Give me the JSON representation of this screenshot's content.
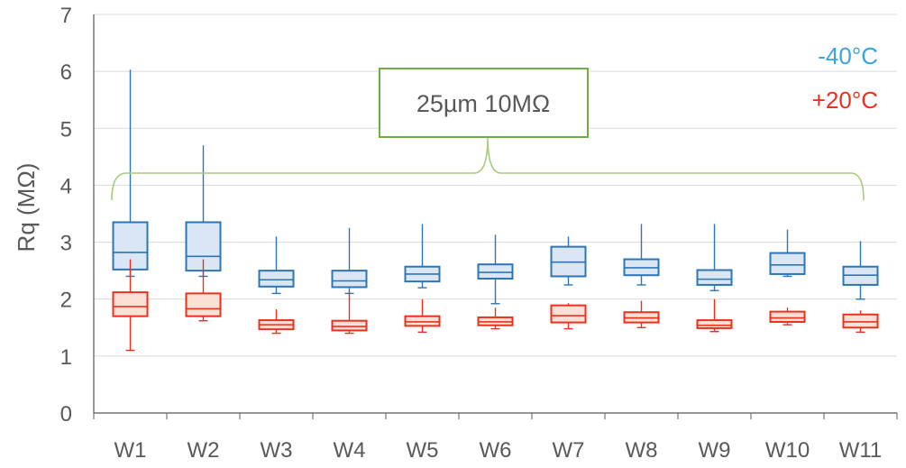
{
  "chart_data": {
    "type": "box",
    "xlabel": "",
    "ylabel": "Rq (MΩ)",
    "ylim": [
      0,
      7
    ],
    "yticks": [
      "0",
      "1",
      "2",
      "3",
      "4",
      "5",
      "6",
      "7"
    ],
    "categories": [
      "W1",
      "W2",
      "W3",
      "W4",
      "W5",
      "W6",
      "W7",
      "W8",
      "W9",
      "W10",
      "W11"
    ],
    "annotation": "25µm 10MΩ",
    "series": [
      {
        "name": "-40°C",
        "color": "#2E75B6",
        "fill": "#DAE6F3",
        "legend_color": "#3BA3E0",
        "boxes": [
          {
            "min": 2.4,
            "q1": 2.52,
            "median": 2.82,
            "q3": 3.35,
            "max": 6.03
          },
          {
            "min": 2.4,
            "q1": 2.5,
            "median": 2.75,
            "q3": 3.35,
            "max": 4.7
          },
          {
            "min": 2.1,
            "q1": 2.22,
            "median": 2.34,
            "q3": 2.5,
            "max": 3.1
          },
          {
            "min": 2.1,
            "q1": 2.21,
            "median": 2.32,
            "q3": 2.5,
            "max": 3.25
          },
          {
            "min": 2.2,
            "q1": 2.31,
            "median": 2.44,
            "q3": 2.57,
            "max": 3.32
          },
          {
            "min": 1.92,
            "q1": 2.36,
            "median": 2.47,
            "q3": 2.61,
            "max": 3.13
          },
          {
            "min": 2.25,
            "q1": 2.4,
            "median": 2.65,
            "q3": 2.92,
            "max": 3.1
          },
          {
            "min": 2.25,
            "q1": 2.42,
            "median": 2.55,
            "q3": 2.7,
            "max": 3.32
          },
          {
            "min": 2.15,
            "q1": 2.25,
            "median": 2.35,
            "q3": 2.51,
            "max": 3.32
          },
          {
            "min": 2.4,
            "q1": 2.44,
            "median": 2.6,
            "q3": 2.81,
            "max": 3.22
          },
          {
            "min": 2.0,
            "q1": 2.25,
            "median": 2.42,
            "q3": 2.57,
            "max": 3.02
          }
        ]
      },
      {
        "name": "+20°C",
        "color": "#E8321F",
        "fill": "#FCE0D6",
        "legend_color": "#E8321F",
        "boxes": [
          {
            "min": 1.1,
            "q1": 1.7,
            "median": 1.87,
            "q3": 2.12,
            "max": 2.7
          },
          {
            "min": 1.62,
            "q1": 1.7,
            "median": 1.83,
            "q3": 2.1,
            "max": 2.7
          },
          {
            "min": 1.4,
            "q1": 1.47,
            "median": 1.55,
            "q3": 1.63,
            "max": 1.82
          },
          {
            "min": 1.4,
            "q1": 1.45,
            "median": 1.52,
            "q3": 1.62,
            "max": 2.12
          },
          {
            "min": 1.42,
            "q1": 1.53,
            "median": 1.6,
            "q3": 1.7,
            "max": 2.0
          },
          {
            "min": 1.48,
            "q1": 1.54,
            "median": 1.6,
            "q3": 1.68,
            "max": 1.85
          },
          {
            "min": 1.48,
            "q1": 1.59,
            "median": 1.71,
            "q3": 1.89,
            "max": 1.93
          },
          {
            "min": 1.5,
            "q1": 1.59,
            "median": 1.67,
            "q3": 1.77,
            "max": 1.97
          },
          {
            "min": 1.43,
            "q1": 1.49,
            "median": 1.54,
            "q3": 1.63,
            "max": 2.0
          },
          {
            "min": 1.55,
            "q1": 1.6,
            "median": 1.67,
            "q3": 1.78,
            "max": 1.85
          },
          {
            "min": 1.42,
            "q1": 1.5,
            "median": 1.6,
            "q3": 1.73,
            "max": 1.8
          }
        ]
      }
    ]
  }
}
